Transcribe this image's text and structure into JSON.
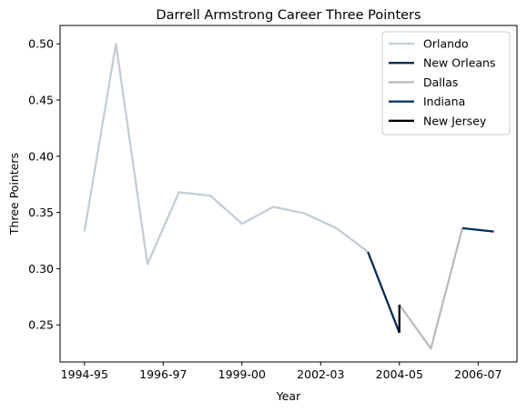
{
  "chart_data": {
    "type": "line",
    "title": "Darrell Armstrong Career Three Pointers",
    "xlabel": "Year",
    "ylabel": "Three Pointers",
    "xticks": [
      "1994-95",
      "1996-97",
      "1999-00",
      "2002-03",
      "2004-05",
      "2006-07"
    ],
    "yticks": [
      "0.25",
      "0.30",
      "0.35",
      "0.40",
      "0.45",
      "0.50"
    ],
    "xlim": [
      1994.7,
      2007.8
    ],
    "ylim": [
      0.2155,
      0.5135
    ],
    "grid": false,
    "legend_position": "top-right",
    "series": [
      {
        "name": "Orlando",
        "color": "#c4ced4",
        "x": [
          1994,
          1995,
          1996,
          1997,
          1998,
          1999,
          2000,
          2001,
          2002,
          2003
        ],
        "y": [
          0.333,
          0.5,
          0.304,
          0.368,
          0.365,
          0.34,
          0.355,
          0.349,
          0.336,
          0.315
        ]
      },
      {
        "name": "New Orleans",
        "color": "#0c2c56",
        "x": [
          2003,
          2004
        ],
        "y": [
          0.315,
          0.243
        ]
      },
      {
        "name": "Dallas",
        "color": "#bbbbbb",
        "x": [
          2004,
          2005,
          2006
        ],
        "y": [
          0.268,
          0.229,
          0.336
        ]
      },
      {
        "name": "Indiana",
        "color": "#002d62",
        "x": [
          2006,
          2007
        ],
        "y": [
          0.336,
          0.333
        ]
      },
      {
        "name": "New Jersey",
        "color": "#000000",
        "x": [
          2004,
          2004
        ],
        "y": [
          0.243,
          0.268
        ]
      }
    ]
  }
}
